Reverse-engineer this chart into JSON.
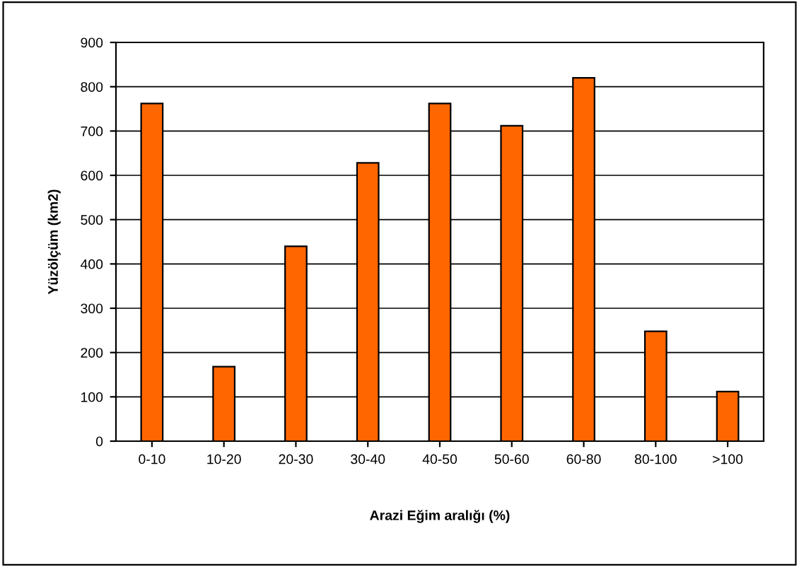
{
  "chart_data": {
    "type": "bar",
    "xlabel": "Arazi Eğim aralığı (%)",
    "ylabel": "Yüzölçüm (km2)",
    "categories": [
      "0-10",
      "10-20",
      "20-30",
      "30-40",
      "40-50",
      "50-60",
      "60-80",
      "80-100",
      ">100"
    ],
    "values": [
      762,
      168,
      440,
      628,
      762,
      712,
      820,
      248,
      112
    ],
    "color": "#ff6600",
    "ylim": [
      0,
      900
    ],
    "yticks": [
      0,
      100,
      200,
      300,
      400,
      500,
      600,
      700,
      800,
      900
    ],
    "grid": "y",
    "legend": false
  }
}
